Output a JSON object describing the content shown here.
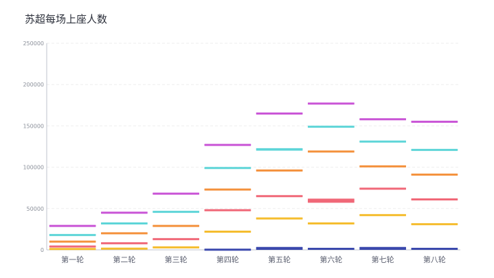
{
  "title": "苏超每场上座人数",
  "chart_data": {
    "type": "bar",
    "variant": "floating-segments",
    "title": "苏超每场上座人数",
    "categories": [
      "第一轮",
      "第二轮",
      "第三轮",
      "第四轮",
      "第五轮",
      "第六轮",
      "第七轮",
      "第八轮"
    ],
    "ylim": [
      0,
      250000
    ],
    "yticks": [
      0,
      50000,
      100000,
      150000,
      200000,
      250000
    ],
    "grid": true,
    "legend": "none",
    "series": [
      {
        "color": "#3b49ad",
        "values": [
          0,
          0,
          0,
          [
            0,
            1500
          ],
          [
            0,
            3500
          ],
          [
            0,
            2500
          ],
          [
            0,
            3500
          ],
          [
            0,
            2500
          ]
        ]
      },
      {
        "color": "#f5bd2f",
        "values": [
          1000,
          1500,
          3000,
          22000,
          38000,
          32000,
          42000,
          31000
        ]
      },
      {
        "color": "#f06878",
        "values": [
          4000,
          8000,
          13000,
          48000,
          65000,
          [
            57000,
            62000
          ],
          74000,
          61000
        ]
      },
      {
        "color": "#f4913c",
        "values": [
          10000,
          20000,
          29000,
          73000,
          96000,
          119000,
          101000,
          91000
        ]
      },
      {
        "color": "#5ed5d8",
        "values": [
          18000,
          32000,
          46000,
          99000,
          [
            120000,
            123000
          ],
          149000,
          131000,
          121000
        ]
      },
      {
        "color": "#c954d6",
        "values": [
          29000,
          45000,
          68000,
          127000,
          165000,
          177000,
          158000,
          155000
        ]
      }
    ]
  }
}
